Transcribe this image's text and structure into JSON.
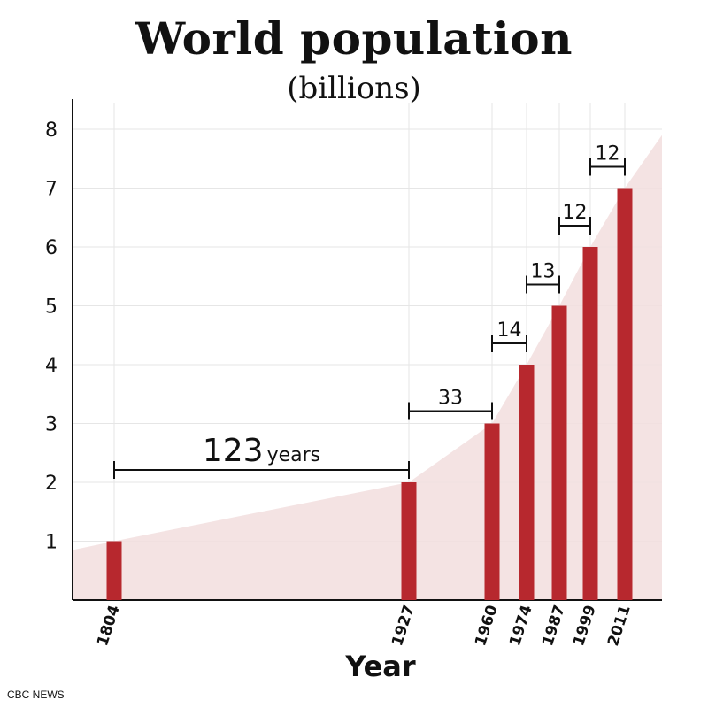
{
  "title": "World population",
  "subtitle": "(billions)",
  "source": "CBC NEWS",
  "colors": {
    "bar": "#b7282e",
    "area": "#f2dede",
    "grid": "#e6e6e6",
    "axis": "#111111"
  },
  "chart_data": {
    "type": "bar",
    "title": "World population",
    "subtitle": "(billions)",
    "xlabel": "Year",
    "ylabel": "",
    "ylim": [
      0,
      8
    ],
    "yticks": [
      1,
      2,
      3,
      4,
      5,
      6,
      7,
      8
    ],
    "grid": true,
    "categories": [
      "1804",
      "1927",
      "1960",
      "1974",
      "1987",
      "1999",
      "2011"
    ],
    "values": [
      1,
      2,
      3,
      4,
      5,
      6,
      7
    ],
    "intervals": [
      {
        "from": "1804",
        "to": "1927",
        "value": "123",
        "unit": "years"
      },
      {
        "from": "1927",
        "to": "1960",
        "value": "33",
        "unit": ""
      },
      {
        "from": "1960",
        "to": "1974",
        "value": "14",
        "unit": ""
      },
      {
        "from": "1974",
        "to": "1987",
        "value": "13",
        "unit": ""
      },
      {
        "from": "1987",
        "to": "1999",
        "value": "12",
        "unit": ""
      },
      {
        "from": "1999",
        "to": "2011",
        "value": "12",
        "unit": ""
      }
    ],
    "trend_area": {
      "x": [
        1780,
        1804,
        1927,
        1960,
        1974,
        1987,
        1999,
        2011,
        2027
      ],
      "y": [
        0.85,
        1,
        2,
        3,
        4,
        5,
        6,
        7,
        7.9
      ]
    }
  }
}
